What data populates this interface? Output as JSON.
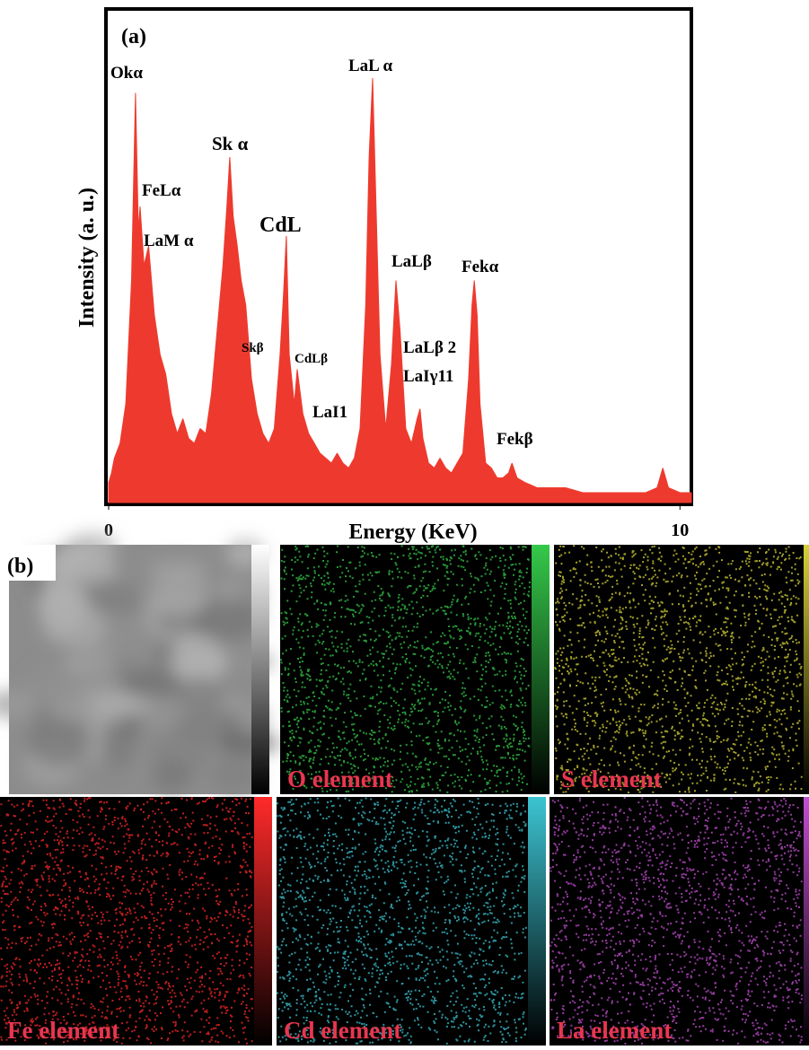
{
  "chart_data": {
    "type": "spectrum",
    "label": "(a)",
    "x_label": "Energy (KeV)",
    "y_label": "Intensity (a. u.)",
    "xlim": [
      0,
      10.2
    ],
    "xticks": [
      0,
      10
    ],
    "ylim": [
      0,
      100
    ],
    "color": "#ee3a2e",
    "x": [
      0,
      0.05,
      0.1,
      0.2,
      0.3,
      0.4,
      0.47,
      0.52,
      0.55,
      0.62,
      0.7,
      0.8,
      0.9,
      1.0,
      1.1,
      1.2,
      1.3,
      1.4,
      1.5,
      1.6,
      1.7,
      1.8,
      1.9,
      2.0,
      2.07,
      2.12,
      2.18,
      2.25,
      2.32,
      2.4,
      2.5,
      2.6,
      2.7,
      2.8,
      2.9,
      3.0,
      3.06,
      3.11,
      3.16,
      3.25,
      3.3,
      3.4,
      3.5,
      3.6,
      3.7,
      3.8,
      3.9,
      4.0,
      4.1,
      4.2,
      4.3,
      4.4,
      4.5,
      4.56,
      4.62,
      4.68,
      4.75,
      4.85,
      4.95,
      5.03,
      5.1,
      5.2,
      5.3,
      5.4,
      5.45,
      5.5,
      5.6,
      5.7,
      5.8,
      5.9,
      6.0,
      6.1,
      6.2,
      6.3,
      6.36,
      6.4,
      6.45,
      6.5,
      6.6,
      6.7,
      6.8,
      6.9,
      7.0,
      7.06,
      7.15,
      7.3,
      7.5,
      7.7,
      8.0,
      8.3,
      8.6,
      9.0,
      9.4,
      9.6,
      9.7,
      9.8,
      10.0,
      10.2
    ],
    "values": [
      4,
      6,
      9,
      12,
      20,
      45,
      83,
      55,
      60,
      48,
      52,
      38,
      30,
      26,
      18,
      14,
      17,
      13,
      12,
      15,
      14,
      22,
      35,
      48,
      60,
      70,
      58,
      52,
      45,
      40,
      25,
      18,
      14,
      12,
      15,
      30,
      42,
      54,
      30,
      20,
      27,
      18,
      14,
      12,
      10,
      9,
      8,
      10,
      8,
      7,
      9,
      15,
      40,
      70,
      86,
      60,
      30,
      15,
      28,
      45,
      35,
      15,
      12,
      17,
      19,
      13,
      8,
      7,
      9,
      7,
      6,
      8,
      10,
      25,
      40,
      45,
      38,
      20,
      8,
      7,
      5,
      5,
      6,
      8,
      5,
      4,
      3,
      3,
      3,
      2,
      2,
      2,
      2,
      3,
      7,
      3,
      2,
      2
    ],
    "annotations": [
      "Okα",
      "FeLα",
      "LaM α",
      "Sk α",
      "CdL",
      "Skβ",
      "CdLβ",
      "LaL α",
      "LaLβ",
      "LaLβ 2",
      "LaIγ11",
      "LaI1",
      "Fekα",
      "Fekβ"
    ]
  },
  "element_maps": {
    "label": "(b)",
    "panels": [
      {
        "colorbar": [
          "#ffffff",
          "#000000"
        ]
      },
      {
        "label": "O element",
        "color": "#35c94a"
      },
      {
        "label": "S element",
        "color": "#d6d13a"
      },
      {
        "label": "Fe element",
        "color": "#ff2a2a"
      },
      {
        "label": "Cd element",
        "color": "#3cc4d2"
      },
      {
        "label": "La element",
        "color": "#c34fd2"
      }
    ]
  }
}
